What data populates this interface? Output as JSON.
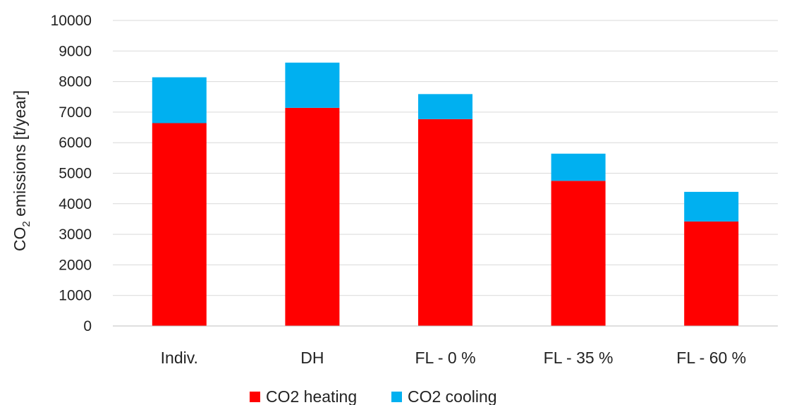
{
  "chart_data": {
    "type": "bar",
    "stacked": true,
    "title": "",
    "xlabel": "",
    "ylabel": {
      "prefix": "CO",
      "subscript": "2",
      "suffix": " emissions [t/year]"
    },
    "ylim": [
      0,
      10000
    ],
    "yticks": [
      0,
      1000,
      2000,
      3000,
      4000,
      5000,
      6000,
      7000,
      8000,
      9000,
      10000
    ],
    "grid": true,
    "legend_position": "bottom",
    "categories": [
      "Indiv.",
      "DH",
      "FL - 0 %",
      "FL - 35 %",
      "FL - 60 %"
    ],
    "series": [
      {
        "name": "CO2 heating",
        "color": "#ff0000",
        "values": [
          6640,
          7140,
          6770,
          4750,
          3420
        ]
      },
      {
        "name": "CO2 cooling",
        "color": "#00b0f0",
        "values": [
          1500,
          1480,
          820,
          890,
          970
        ]
      }
    ]
  }
}
